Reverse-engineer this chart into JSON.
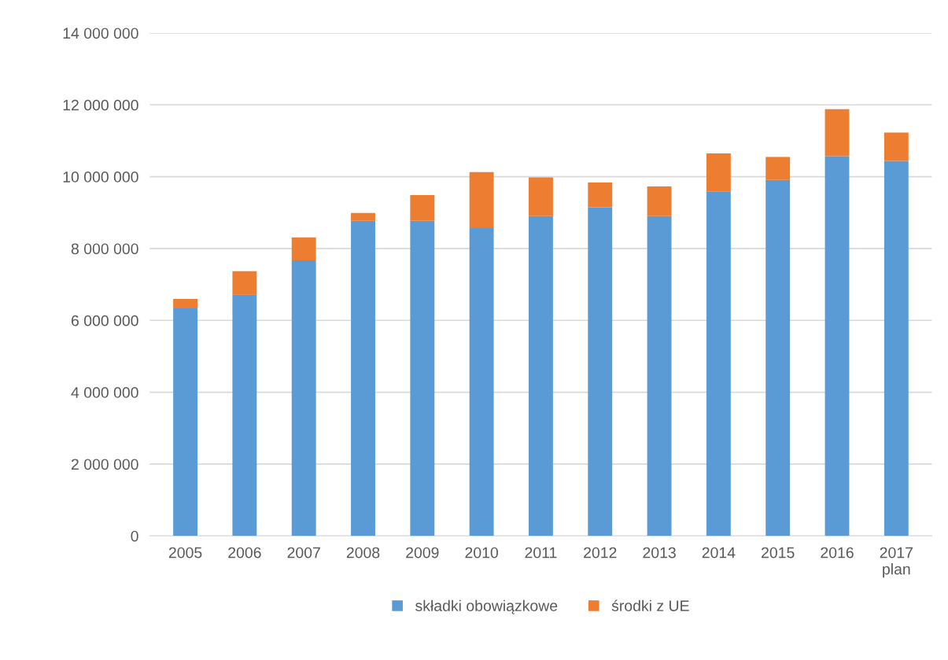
{
  "chart_data": {
    "type": "bar",
    "stacked": true,
    "categories": [
      "2005",
      "2006",
      "2007",
      "2008",
      "2009",
      "2010",
      "2011",
      "2012",
      "2013",
      "2014",
      "2015",
      "2016",
      "2017\nplan"
    ],
    "series": [
      {
        "name": "składki obowiązkowe",
        "color": "#5b9bd5",
        "values": [
          6335000,
          6710000,
          7670000,
          8770000,
          8770000,
          8570000,
          8900000,
          9150000,
          8900000,
          9590000,
          9910000,
          10570000,
          10440000
        ]
      },
      {
        "name": "środki z UE",
        "color": "#ed7d31",
        "values": [
          265000,
          660000,
          640000,
          220000,
          720000,
          1560000,
          1080000,
          690000,
          830000,
          1060000,
          640000,
          1310000,
          790000
        ]
      }
    ],
    "ylim": [
      0,
      14000000
    ],
    "yticks": [
      {
        "value": 0,
        "label": "0"
      },
      {
        "value": 2000000,
        "label": "2 000 000"
      },
      {
        "value": 4000000,
        "label": "4 000 000"
      },
      {
        "value": 6000000,
        "label": "6 000 000"
      },
      {
        "value": 8000000,
        "label": "8 000 000"
      },
      {
        "value": 10000000,
        "label": "10 000 000"
      },
      {
        "value": 12000000,
        "label": "12 000 000"
      },
      {
        "value": 14000000,
        "label": "14 000 000"
      }
    ],
    "grid": "y",
    "legend": "bottom"
  }
}
